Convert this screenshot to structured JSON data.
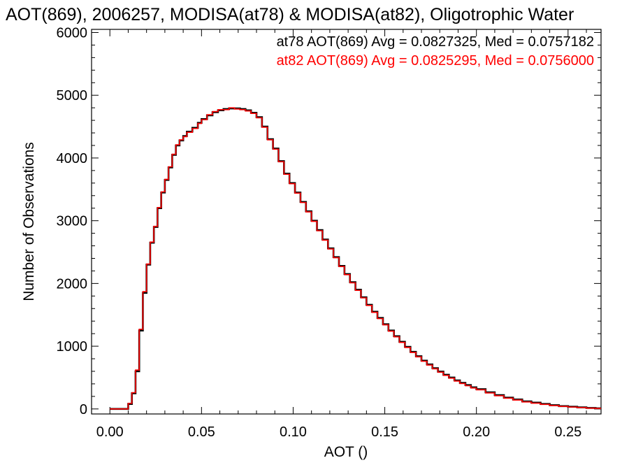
{
  "chart_data": {
    "type": "line",
    "title": "AOT(869), 2006257, MODISA(at78) & MODISA(at82), Oligotrophic Water",
    "xlabel": "AOT ()",
    "ylabel": "Number of Observations",
    "xlim": [
      -0.01,
      0.268
    ],
    "ylim": [
      -80,
      6050
    ],
    "xticks": [
      0.0,
      0.05,
      0.1,
      0.15,
      0.2,
      0.25
    ],
    "xtick_labels": [
      "0.00",
      "0.05",
      "0.10",
      "0.15",
      "0.20",
      "0.25"
    ],
    "yticks": [
      0,
      1000,
      2000,
      3000,
      4000,
      5000,
      6000
    ],
    "ytick_labels": [
      "0",
      "1000",
      "2000",
      "3000",
      "4000",
      "5000",
      "6000"
    ],
    "grid": false,
    "legend_position": "top-right",
    "series": [
      {
        "name": "at78",
        "color": "#000000",
        "annotation": "at78 AOT(869) Avg = 0.0827325, Med = 0.0757182",
        "x": [
          0.0,
          0.005,
          0.008,
          0.01,
          0.012,
          0.014,
          0.016,
          0.018,
          0.02,
          0.022,
          0.024,
          0.026,
          0.028,
          0.03,
          0.032,
          0.034,
          0.036,
          0.038,
          0.04,
          0.042,
          0.045,
          0.048,
          0.05,
          0.053,
          0.056,
          0.059,
          0.062,
          0.065,
          0.068,
          0.071,
          0.074,
          0.077,
          0.08,
          0.083,
          0.086,
          0.089,
          0.092,
          0.095,
          0.098,
          0.101,
          0.104,
          0.107,
          0.11,
          0.113,
          0.116,
          0.119,
          0.122,
          0.125,
          0.128,
          0.131,
          0.134,
          0.137,
          0.14,
          0.143,
          0.146,
          0.149,
          0.152,
          0.155,
          0.158,
          0.161,
          0.164,
          0.167,
          0.17,
          0.173,
          0.176,
          0.179,
          0.182,
          0.185,
          0.188,
          0.191,
          0.194,
          0.197,
          0.2,
          0.205,
          0.21,
          0.215,
          0.22,
          0.225,
          0.23,
          0.235,
          0.24,
          0.245,
          0.25,
          0.255,
          0.26,
          0.265
        ],
        "y": [
          0,
          0,
          0,
          80,
          250,
          600,
          1250,
          1850,
          2300,
          2650,
          2900,
          3200,
          3450,
          3650,
          3850,
          4050,
          4200,
          4280,
          4350,
          4420,
          4480,
          4560,
          4620,
          4680,
          4730,
          4760,
          4780,
          4790,
          4790,
          4780,
          4760,
          4720,
          4650,
          4500,
          4300,
          4150,
          3950,
          3750,
          3600,
          3450,
          3300,
          3150,
          3000,
          2850,
          2700,
          2560,
          2420,
          2280,
          2150,
          2020,
          1900,
          1780,
          1660,
          1550,
          1450,
          1350,
          1250,
          1160,
          1070,
          990,
          910,
          840,
          770,
          710,
          650,
          595,
          545,
          500,
          455,
          415,
          380,
          345,
          315,
          265,
          220,
          180,
          150,
          120,
          100,
          80,
          60,
          45,
          35,
          25,
          15,
          10
        ]
      },
      {
        "name": "at82",
        "color": "#ff0000",
        "annotation": "at82 AOT(869) Avg = 0.0825295, Med = 0.0756000",
        "x": [
          0.0,
          0.005,
          0.008,
          0.01,
          0.012,
          0.014,
          0.016,
          0.018,
          0.02,
          0.022,
          0.024,
          0.026,
          0.028,
          0.03,
          0.032,
          0.034,
          0.036,
          0.038,
          0.04,
          0.042,
          0.045,
          0.048,
          0.05,
          0.053,
          0.056,
          0.059,
          0.062,
          0.065,
          0.068,
          0.071,
          0.074,
          0.077,
          0.08,
          0.083,
          0.086,
          0.089,
          0.092,
          0.095,
          0.098,
          0.101,
          0.104,
          0.107,
          0.11,
          0.113,
          0.116,
          0.119,
          0.122,
          0.125,
          0.128,
          0.131,
          0.134,
          0.137,
          0.14,
          0.143,
          0.146,
          0.149,
          0.152,
          0.155,
          0.158,
          0.161,
          0.164,
          0.167,
          0.17,
          0.173,
          0.176,
          0.179,
          0.182,
          0.185,
          0.188,
          0.191,
          0.194,
          0.197,
          0.2,
          0.205,
          0.21,
          0.215,
          0.22,
          0.225,
          0.23,
          0.235,
          0.24,
          0.245,
          0.25,
          0.255,
          0.26,
          0.265
        ],
        "y": [
          0,
          0,
          0,
          90,
          260,
          620,
          1270,
          1870,
          2310,
          2660,
          2910,
          3210,
          3460,
          3660,
          3860,
          4060,
          4210,
          4290,
          4340,
          4410,
          4470,
          4550,
          4610,
          4690,
          4740,
          4770,
          4770,
          4800,
          4780,
          4770,
          4750,
          4710,
          4640,
          4490,
          4290,
          4140,
          3940,
          3740,
          3590,
          3440,
          3290,
          3140,
          2990,
          2840,
          2690,
          2550,
          2410,
          2270,
          2140,
          2010,
          1890,
          1770,
          1650,
          1540,
          1440,
          1340,
          1240,
          1150,
          1060,
          980,
          900,
          830,
          760,
          700,
          640,
          585,
          535,
          490,
          445,
          405,
          370,
          335,
          305,
          255,
          210,
          172,
          142,
          112,
          92,
          72,
          54,
          40,
          30,
          22,
          13,
          8
        ]
      }
    ]
  }
}
